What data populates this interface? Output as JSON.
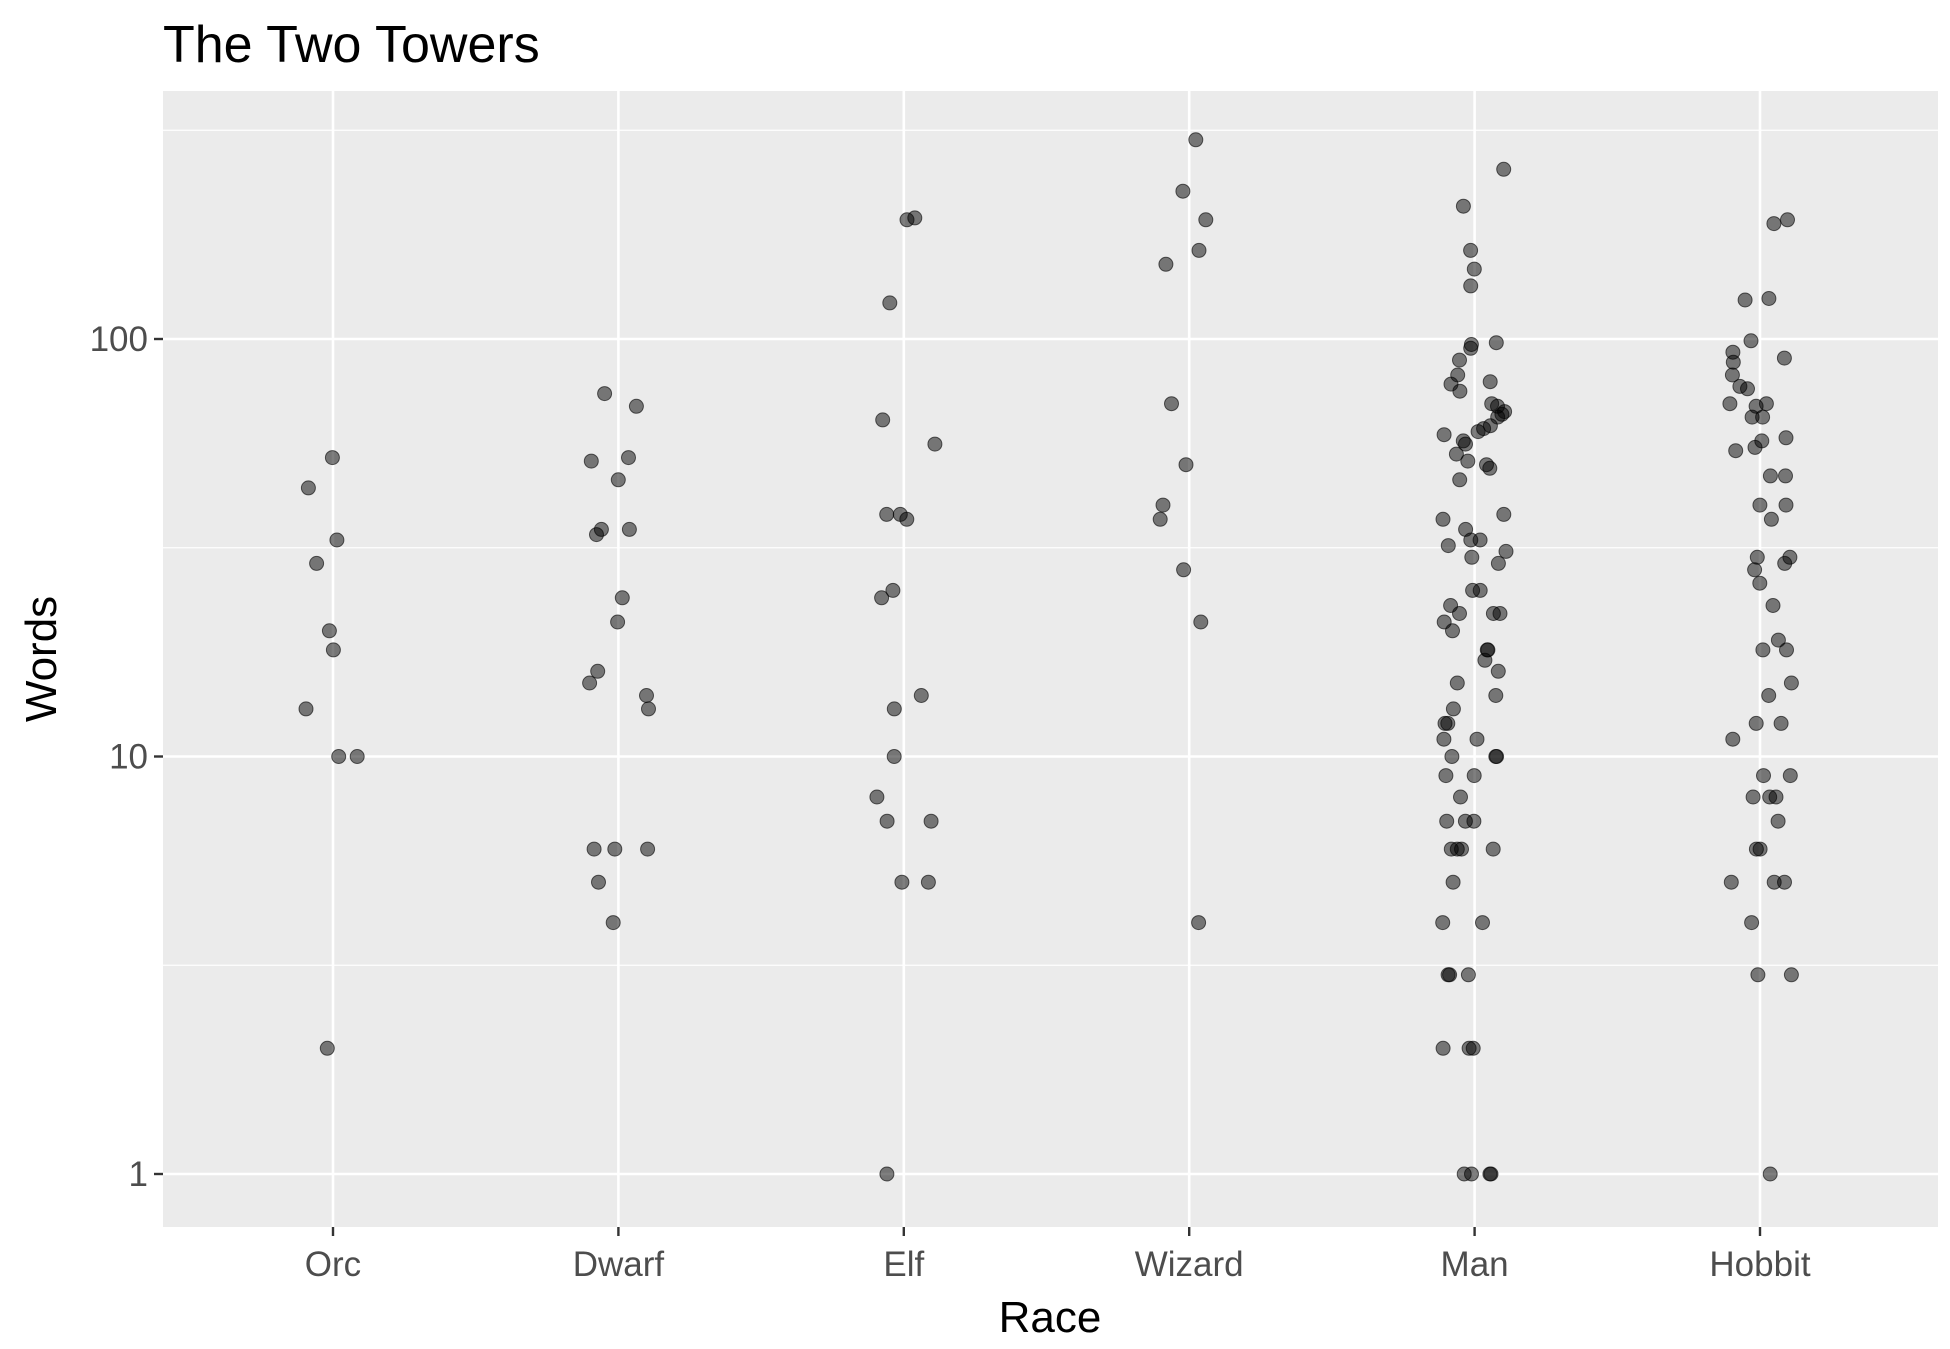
{
  "chart_data": {
    "type": "scatter",
    "title": "The Two Towers",
    "xlabel": "Race",
    "ylabel": "Words",
    "y_scale": "log10",
    "ylim": [
      0.75,
      400
    ],
    "y_ticks": [
      1,
      10,
      100
    ],
    "y_tick_labels": [
      "1",
      "10",
      "100"
    ],
    "categories": [
      "Orc",
      "Dwarf",
      "Elf",
      "Wizard",
      "Man",
      "Hobbit"
    ],
    "grid": true,
    "point_color": "#000000",
    "point_opacity": 0.5,
    "panel_background": "#ebebeb",
    "grid_color": "#ffffff",
    "points": {
      "Orc": [
        52,
        33,
        44,
        29,
        20,
        18,
        13,
        10,
        10,
        2
      ],
      "Dwarf": [
        74,
        69,
        52,
        51,
        46,
        35,
        35,
        34,
        24,
        21,
        16,
        15,
        14,
        13,
        6,
        6,
        6,
        5,
        4
      ],
      "Elf": [
        193,
        195,
        122,
        64,
        56,
        38,
        38,
        37,
        25,
        24,
        14,
        13,
        10,
        8,
        7,
        7,
        5,
        5,
        1
      ],
      "Wizard": [
        300,
        226,
        193,
        163,
        151,
        70,
        50,
        40,
        37,
        28,
        21,
        4
      ],
      "Man": [
        255,
        208,
        163,
        147,
        134,
        98,
        97,
        95,
        89,
        82,
        79,
        78,
        75,
        70,
        69,
        67,
        66,
        65,
        62,
        61,
        60,
        59,
        57,
        56,
        53,
        51,
        50,
        49,
        46,
        38,
        37,
        35,
        33,
        33,
        32,
        31,
        30,
        29,
        25,
        25,
        23,
        22,
        22,
        22,
        21,
        20,
        18,
        18,
        17,
        16,
        15,
        14,
        13,
        12,
        12,
        11,
        11,
        10,
        10,
        10,
        9,
        9,
        8,
        7,
        7,
        7,
        6,
        6,
        6,
        6,
        5,
        4,
        4,
        3,
        3,
        3,
        2,
        2,
        2,
        1,
        1,
        1,
        1
      ],
      "Hobbit": [
        193,
        189,
        125,
        124,
        99,
        93,
        90,
        88,
        82,
        77,
        76,
        70,
        70,
        69,
        65,
        65,
        58,
        57,
        55,
        54,
        47,
        47,
        40,
        40,
        37,
        30,
        30,
        29,
        28,
        26,
        23,
        19,
        18,
        18,
        15,
        14,
        12,
        12,
        11,
        9,
        9,
        8,
        8,
        8,
        7,
        6,
        6,
        5,
        5,
        5,
        4,
        3,
        3,
        1
      ]
    }
  }
}
